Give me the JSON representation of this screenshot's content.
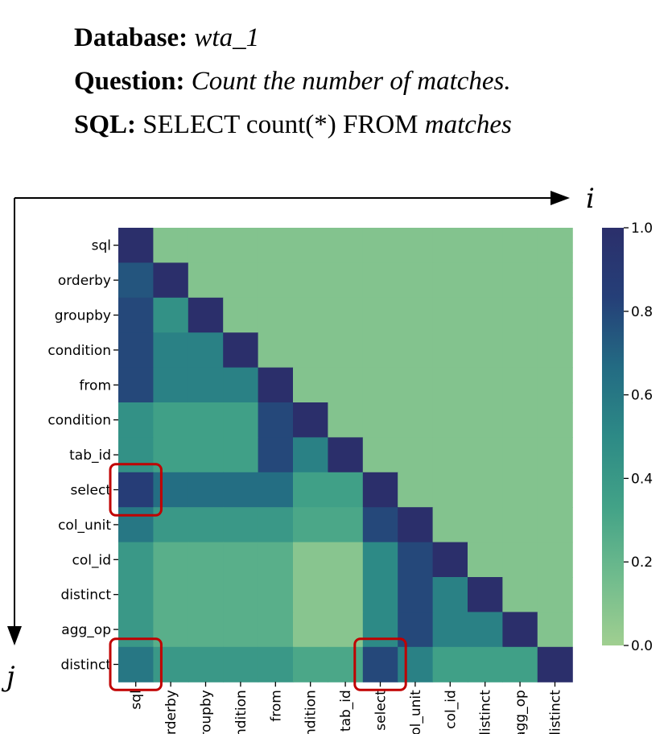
{
  "header": {
    "database_label": "Database:",
    "database_value": "wta_1",
    "question_label": "Question:",
    "question_value": "Count the number of matches.",
    "sql_label": "SQL:",
    "sql_plain": "SELECT count(*) FROM",
    "sql_italic": "matches"
  },
  "axes": {
    "i_label": "i",
    "j_label": "j"
  },
  "chart_data": {
    "type": "heatmap",
    "labels": [
      "sql",
      "orderby",
      "groupby",
      "condition",
      "from",
      "condition",
      "tab_id",
      "select",
      "col_unit",
      "col_id",
      "distinct",
      "agg_op",
      "distinct"
    ],
    "values": [
      [
        1.0,
        0.1,
        0.1,
        0.1,
        0.1,
        0.1,
        0.1,
        0.1,
        0.1,
        0.1,
        0.1,
        0.1,
        0.1
      ],
      [
        0.75,
        1.0,
        0.1,
        0.1,
        0.1,
        0.1,
        0.1,
        0.1,
        0.1,
        0.1,
        0.1,
        0.1,
        0.1
      ],
      [
        0.8,
        0.45,
        1.0,
        0.1,
        0.1,
        0.1,
        0.1,
        0.1,
        0.1,
        0.1,
        0.1,
        0.1,
        0.1
      ],
      [
        0.8,
        0.55,
        0.55,
        1.0,
        0.1,
        0.1,
        0.1,
        0.1,
        0.1,
        0.1,
        0.1,
        0.1,
        0.1
      ],
      [
        0.8,
        0.55,
        0.55,
        0.55,
        1.0,
        0.1,
        0.1,
        0.1,
        0.1,
        0.1,
        0.1,
        0.1,
        0.1
      ],
      [
        0.45,
        0.35,
        0.35,
        0.35,
        0.8,
        1.0,
        0.1,
        0.1,
        0.1,
        0.1,
        0.1,
        0.1,
        0.1
      ],
      [
        0.45,
        0.35,
        0.35,
        0.35,
        0.8,
        0.55,
        1.0,
        0.1,
        0.1,
        0.1,
        0.1,
        0.1,
        0.1
      ],
      [
        0.85,
        0.65,
        0.65,
        0.65,
        0.65,
        0.35,
        0.35,
        1.0,
        0.1,
        0.1,
        0.1,
        0.1,
        0.1
      ],
      [
        0.6,
        0.4,
        0.4,
        0.4,
        0.4,
        0.3,
        0.3,
        0.8,
        1.0,
        0.1,
        0.1,
        0.1,
        0.1
      ],
      [
        0.4,
        0.25,
        0.25,
        0.25,
        0.25,
        0.08,
        0.08,
        0.5,
        0.8,
        1.0,
        0.1,
        0.1,
        0.1
      ],
      [
        0.4,
        0.25,
        0.25,
        0.25,
        0.25,
        0.08,
        0.08,
        0.5,
        0.8,
        0.55,
        1.0,
        0.1,
        0.1
      ],
      [
        0.4,
        0.25,
        0.25,
        0.25,
        0.25,
        0.08,
        0.08,
        0.5,
        0.8,
        0.55,
        0.55,
        1.0,
        0.1
      ],
      [
        0.6,
        0.4,
        0.4,
        0.4,
        0.4,
        0.3,
        0.3,
        0.8,
        0.55,
        0.35,
        0.35,
        0.35,
        1.0
      ]
    ],
    "colorbar": {
      "min": 0.0,
      "max": 1.0,
      "ticks": [
        "0.0",
        "0.2",
        "0.4",
        "0.6",
        "0.8",
        "1.0"
      ]
    },
    "colormap": [
      "#a0cf90",
      "#6fbb8d",
      "#42a287",
      "#2d8a86",
      "#236b83",
      "#253f78",
      "#2b2f6b"
    ],
    "highlight_color": "#c00000",
    "highlights": [
      {
        "row": 7,
        "col": 0
      },
      {
        "row": 12,
        "col": 0
      },
      {
        "row": 12,
        "col": 7
      }
    ]
  }
}
